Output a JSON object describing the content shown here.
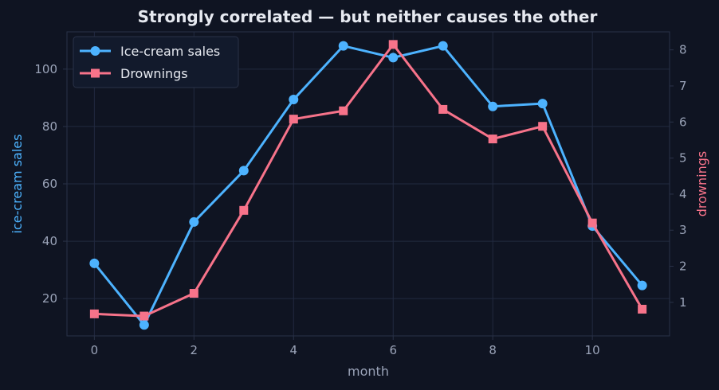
{
  "chart_data": {
    "type": "line",
    "title": "Strongly correlated — but neither causes the other",
    "xlabel": "month",
    "ylabel_left": "ice-cream sales",
    "ylabel_right": "drownings",
    "x": [
      0,
      1,
      2,
      3,
      4,
      5,
      6,
      7,
      8,
      9,
      10,
      11
    ],
    "xlim": [
      -0.55,
      11.55
    ],
    "xticks": [
      0,
      2,
      4,
      6,
      8,
      10
    ],
    "ylim_left": [
      7,
      113
    ],
    "yticks_left": [
      20,
      40,
      60,
      80,
      100
    ],
    "ylim_right": [
      0.07,
      8.5
    ],
    "yticks_right": [
      1,
      2,
      3,
      4,
      5,
      6,
      7,
      8
    ],
    "grid": true,
    "legend_position": "top-left",
    "series": [
      {
        "name": "Ice-cream sales",
        "axis": "left",
        "marker": "circle",
        "color": "#4db3ff",
        "values": [
          32.3,
          10.8,
          46.7,
          64.6,
          89.4,
          108.1,
          104.0,
          108.1,
          87.0,
          88.0,
          45.3,
          24.6
        ]
      },
      {
        "name": "Drownings",
        "axis": "right",
        "marker": "square",
        "color": "#f7738a",
        "values": [
          0.68,
          0.62,
          1.25,
          3.55,
          6.08,
          6.31,
          8.15,
          6.35,
          5.53,
          5.88,
          3.2,
          0.81
        ]
      }
    ]
  }
}
